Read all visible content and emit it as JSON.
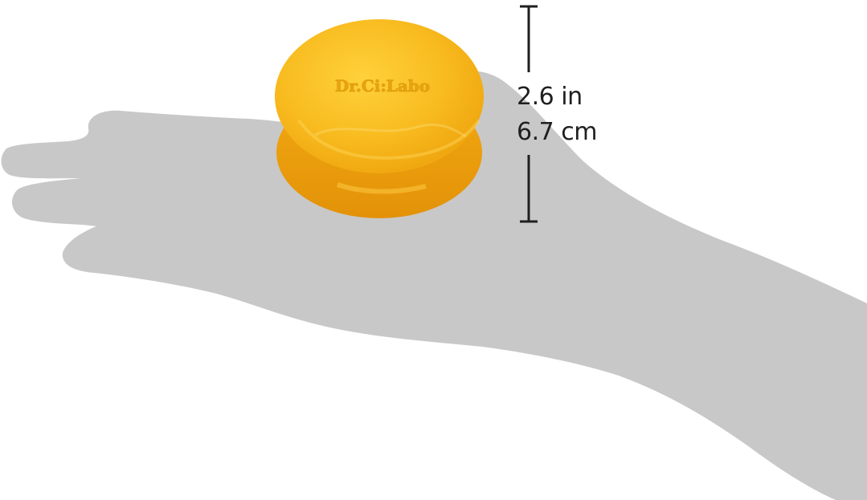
{
  "product": {
    "name": "soap-bar",
    "embossed_text": "Dr.Ci:Labo",
    "color": "#f5b318"
  },
  "hand": {
    "color": "#c8c8c8"
  },
  "measurement": {
    "inches": "2.6 in",
    "centimeters": "6.7 cm",
    "line_color": "#1f1f1f"
  }
}
